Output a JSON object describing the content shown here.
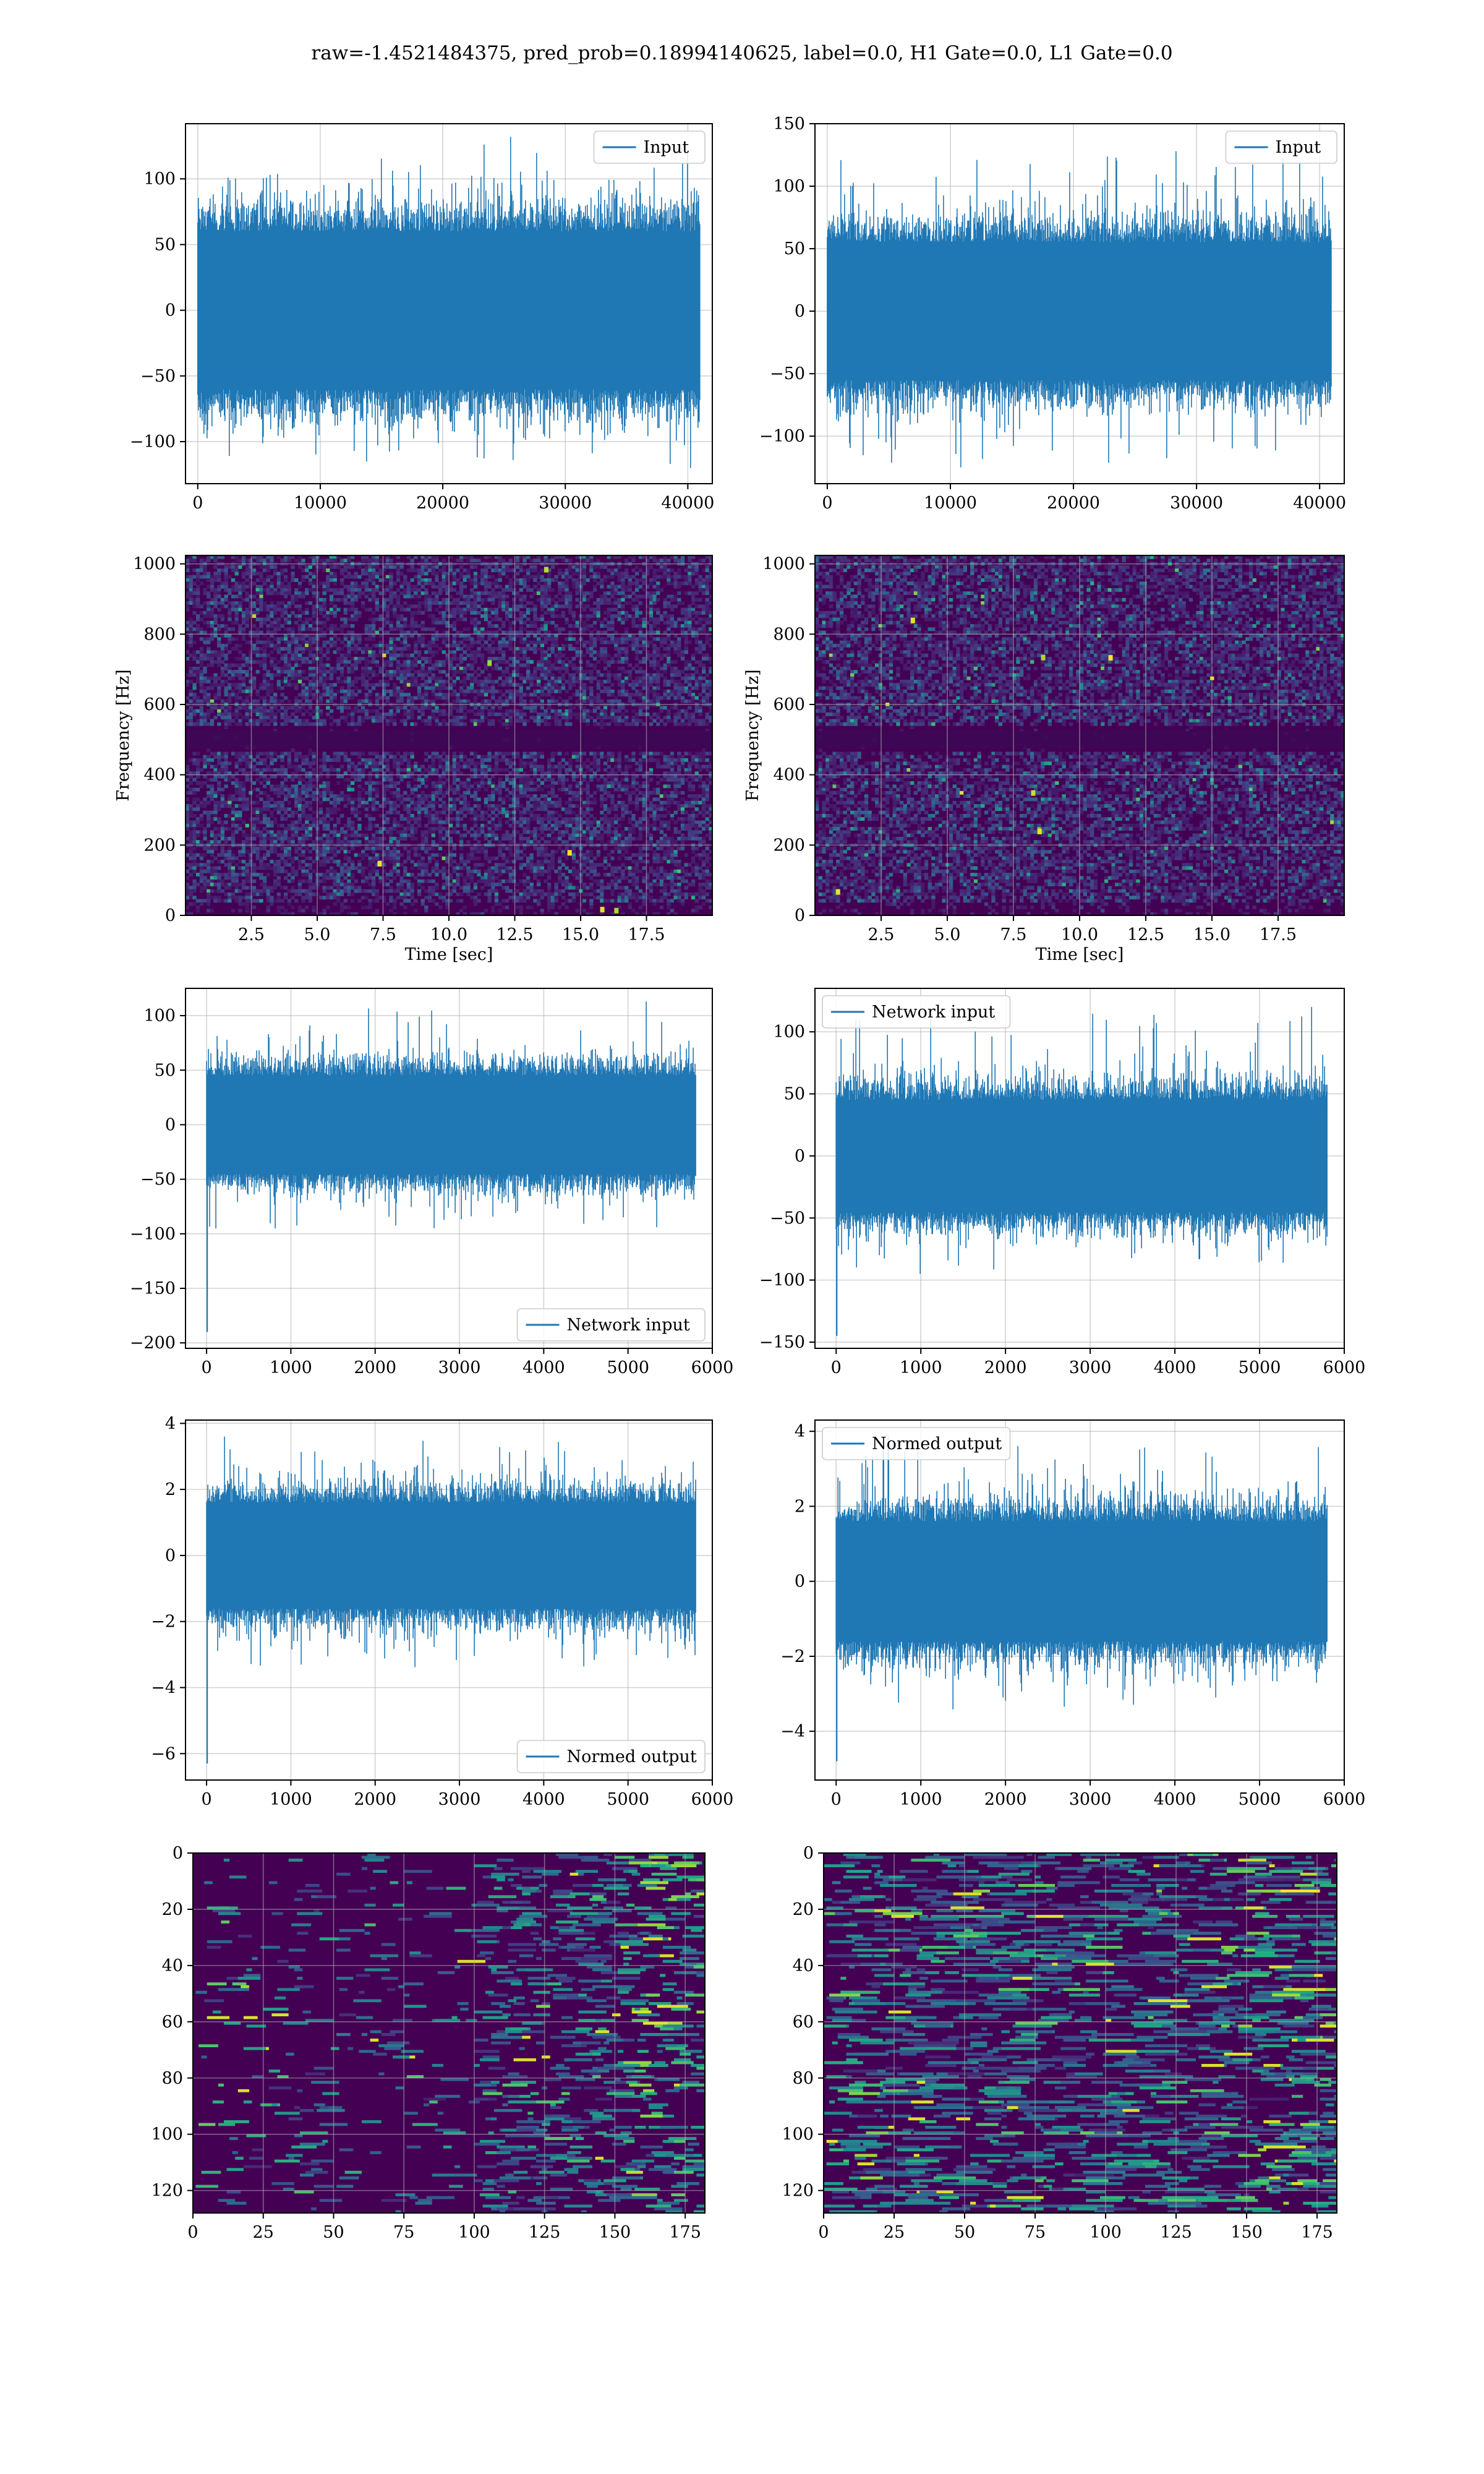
{
  "suptitle": "raw=-1.4521484375, pred_prob=0.18994140625, label=0.0, H1 Gate=0.0, L1 Gate=0.0",
  "colors": {
    "series": "#1f77b4",
    "grid": "#b0b0b0",
    "viridis_low": "#440154",
    "viridis_mid": "#21918c",
    "viridis_high": "#fde725"
  },
  "chart_data": [
    {
      "panel": "row1-left",
      "type": "line",
      "title": "",
      "xlabel": "",
      "ylabel": "",
      "xlim": [
        -1000,
        42000
      ],
      "ylim": [
        -132,
        142
      ],
      "xticks": [
        0,
        10000,
        20000,
        30000,
        40000
      ],
      "yticks": [
        -100,
        -50,
        0,
        50,
        100
      ],
      "legend": {
        "label": "Input",
        "loc": "upper right"
      },
      "series": [
        {
          "name": "Input",
          "n_samples": 40960,
          "x_range": [
            0,
            40960
          ],
          "envelope": [
            -120,
            132
          ],
          "typical_band": [
            -60,
            60
          ]
        }
      ]
    },
    {
      "panel": "row1-right",
      "type": "line",
      "title": "",
      "xlabel": "",
      "ylabel": "",
      "xlim": [
        -1000,
        42000
      ],
      "ylim": [
        -138,
        150
      ],
      "xticks": [
        0,
        10000,
        20000,
        30000,
        40000
      ],
      "yticks": [
        -100,
        -50,
        0,
        50,
        100,
        150
      ],
      "legend": {
        "label": "Input",
        "loc": "upper right"
      },
      "series": [
        {
          "name": "Input",
          "n_samples": 40960,
          "x_range": [
            0,
            40960
          ],
          "envelope": [
            -125,
            128
          ],
          "typical_band": [
            -55,
            55
          ]
        }
      ]
    },
    {
      "panel": "row2-left",
      "type": "heatmap",
      "title": "",
      "xlabel": "Time [sec]",
      "ylabel": "Frequency [Hz]",
      "xlim": [
        0,
        20
      ],
      "ylim": [
        0,
        1024
      ],
      "xticks": [
        2.5,
        5.0,
        7.5,
        10.0,
        12.5,
        15.0,
        17.5
      ],
      "yticks": [
        0,
        200,
        400,
        600,
        800,
        1000
      ],
      "colormap": "viridis",
      "dark_band_hz": 500,
      "content": "spectrogram of input strain"
    },
    {
      "panel": "row2-right",
      "type": "heatmap",
      "title": "",
      "xlabel": "Time [sec]",
      "ylabel": "Frequency [Hz]",
      "xlim": [
        0,
        20
      ],
      "ylim": [
        0,
        1024
      ],
      "xticks": [
        2.5,
        5.0,
        7.5,
        10.0,
        12.5,
        15.0,
        17.5
      ],
      "yticks": [
        0,
        200,
        400,
        600,
        800,
        1000
      ],
      "colormap": "viridis",
      "dark_band_hz": 500,
      "content": "spectrogram of input strain"
    },
    {
      "panel": "row3-left",
      "type": "line",
      "title": "",
      "xlabel": "",
      "ylabel": "",
      "xlim": [
        -250,
        6000
      ],
      "ylim": [
        -205,
        125
      ],
      "xticks": [
        0,
        1000,
        2000,
        3000,
        4000,
        5000,
        6000
      ],
      "yticks": [
        -200,
        -150,
        -100,
        -50,
        0,
        50,
        100
      ],
      "legend": {
        "label": "Network input",
        "loc": "lower right"
      },
      "series": [
        {
          "name": "Network input",
          "n_samples": 5800,
          "x_range": [
            0,
            5800
          ],
          "spike_at_start": -190,
          "max": 113,
          "typical_band": [
            -45,
            45
          ]
        }
      ]
    },
    {
      "panel": "row3-right",
      "type": "line",
      "title": "",
      "xlabel": "",
      "ylabel": "",
      "xlim": [
        -250,
        6000
      ],
      "ylim": [
        -155,
        135
      ],
      "xticks": [
        0,
        1000,
        2000,
        3000,
        4000,
        5000,
        6000
      ],
      "yticks": [
        -150,
        -100,
        -50,
        0,
        50,
        100
      ],
      "legend": {
        "label": "Network input",
        "loc": "upper left"
      },
      "series": [
        {
          "name": "Network input",
          "n_samples": 5800,
          "x_range": [
            0,
            5800
          ],
          "spike_at_start": -145,
          "max": 120,
          "typical_band": [
            -45,
            45
          ]
        }
      ]
    },
    {
      "panel": "row4-left",
      "type": "line",
      "title": "",
      "xlabel": "",
      "ylabel": "",
      "xlim": [
        -250,
        6000
      ],
      "ylim": [
        -6.8,
        4.1
      ],
      "xticks": [
        0,
        1000,
        2000,
        3000,
        4000,
        5000,
        6000
      ],
      "yticks": [
        -6,
        -4,
        -2,
        0,
        2,
        4
      ],
      "legend": {
        "label": "Normed output",
        "loc": "lower right"
      },
      "series": [
        {
          "name": "Normed output",
          "n_samples": 5800,
          "x_range": [
            0,
            5800
          ],
          "spike_at_start": -6.3,
          "max": 3.6,
          "typical_band": [
            -1.6,
            1.6
          ]
        }
      ]
    },
    {
      "panel": "row4-right",
      "type": "line",
      "title": "",
      "xlabel": "",
      "ylabel": "",
      "xlim": [
        -250,
        6000
      ],
      "ylim": [
        -5.3,
        4.3
      ],
      "xticks": [
        0,
        1000,
        2000,
        3000,
        4000,
        5000,
        6000
      ],
      "yticks": [
        -4,
        -2,
        0,
        2,
        4
      ],
      "legend": {
        "label": "Normed output",
        "loc": "upper left"
      },
      "series": [
        {
          "name": "Normed output",
          "n_samples": 5800,
          "x_range": [
            0,
            5800
          ],
          "spike_at_start": -4.8,
          "max": 3.9,
          "typical_band": [
            -1.6,
            1.6
          ]
        }
      ]
    },
    {
      "panel": "row5-left",
      "type": "heatmap",
      "title": "",
      "xlabel": "",
      "ylabel": "",
      "xlim": [
        0,
        182
      ],
      "ylim": [
        128,
        0
      ],
      "xticks": [
        0,
        25,
        50,
        75,
        100,
        125,
        150,
        175
      ],
      "yticks": [
        0,
        20,
        40,
        60,
        80,
        100,
        120
      ],
      "colormap": "viridis",
      "rows": 128,
      "cols": 182,
      "content": "feature map, activity concentrated at columns 105-175"
    },
    {
      "panel": "row5-right",
      "type": "heatmap",
      "title": "",
      "xlabel": "",
      "ylabel": "",
      "xlim": [
        0,
        182
      ],
      "ylim": [
        128,
        0
      ],
      "xticks": [
        0,
        25,
        50,
        75,
        100,
        125,
        150,
        175
      ],
      "yticks": [
        0,
        20,
        40,
        60,
        80,
        100,
        120
      ],
      "colormap": "viridis",
      "rows": 128,
      "cols": 182,
      "content": "feature map, activity spread across columns 0-182"
    }
  ]
}
